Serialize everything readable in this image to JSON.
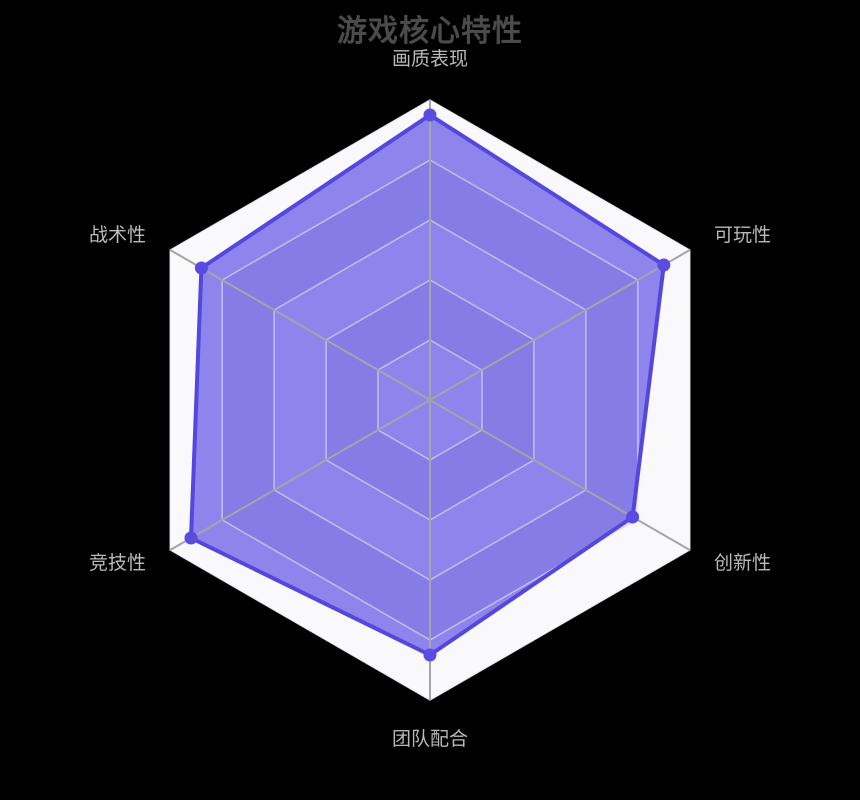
{
  "page": {
    "background": "#000000"
  },
  "chart_data": {
    "type": "radar",
    "title": "游戏核心特性",
    "legend": "none",
    "levels": 5,
    "value_range": [
      0,
      100
    ],
    "indicators": [
      {
        "name": "画质表现",
        "max": 100
      },
      {
        "name": "可玩性",
        "max": 100
      },
      {
        "name": "创新性",
        "max": 100
      },
      {
        "name": "团队配合",
        "max": 100
      },
      {
        "name": "竞技性",
        "max": 100
      },
      {
        "name": "战术性",
        "max": 100
      }
    ],
    "series": [
      {
        "values": [
          95,
          90,
          78,
          85,
          92,
          88
        ]
      }
    ],
    "style": {
      "series_line": "#5546dd",
      "series_fill": "rgba(92,78,228,0.68)",
      "dot_fill": "#5a4ce0",
      "split_area_light": "#f9f9fb",
      "split_area_dark": "#dcdce7",
      "split_border": "#d9d9e3",
      "ring_line_overlay": "rgba(255,255,255,0.5)",
      "axis_line": "#a4a4ab",
      "title_color": "#4b4b4b",
      "label_color": "#b9b9b9"
    }
  }
}
